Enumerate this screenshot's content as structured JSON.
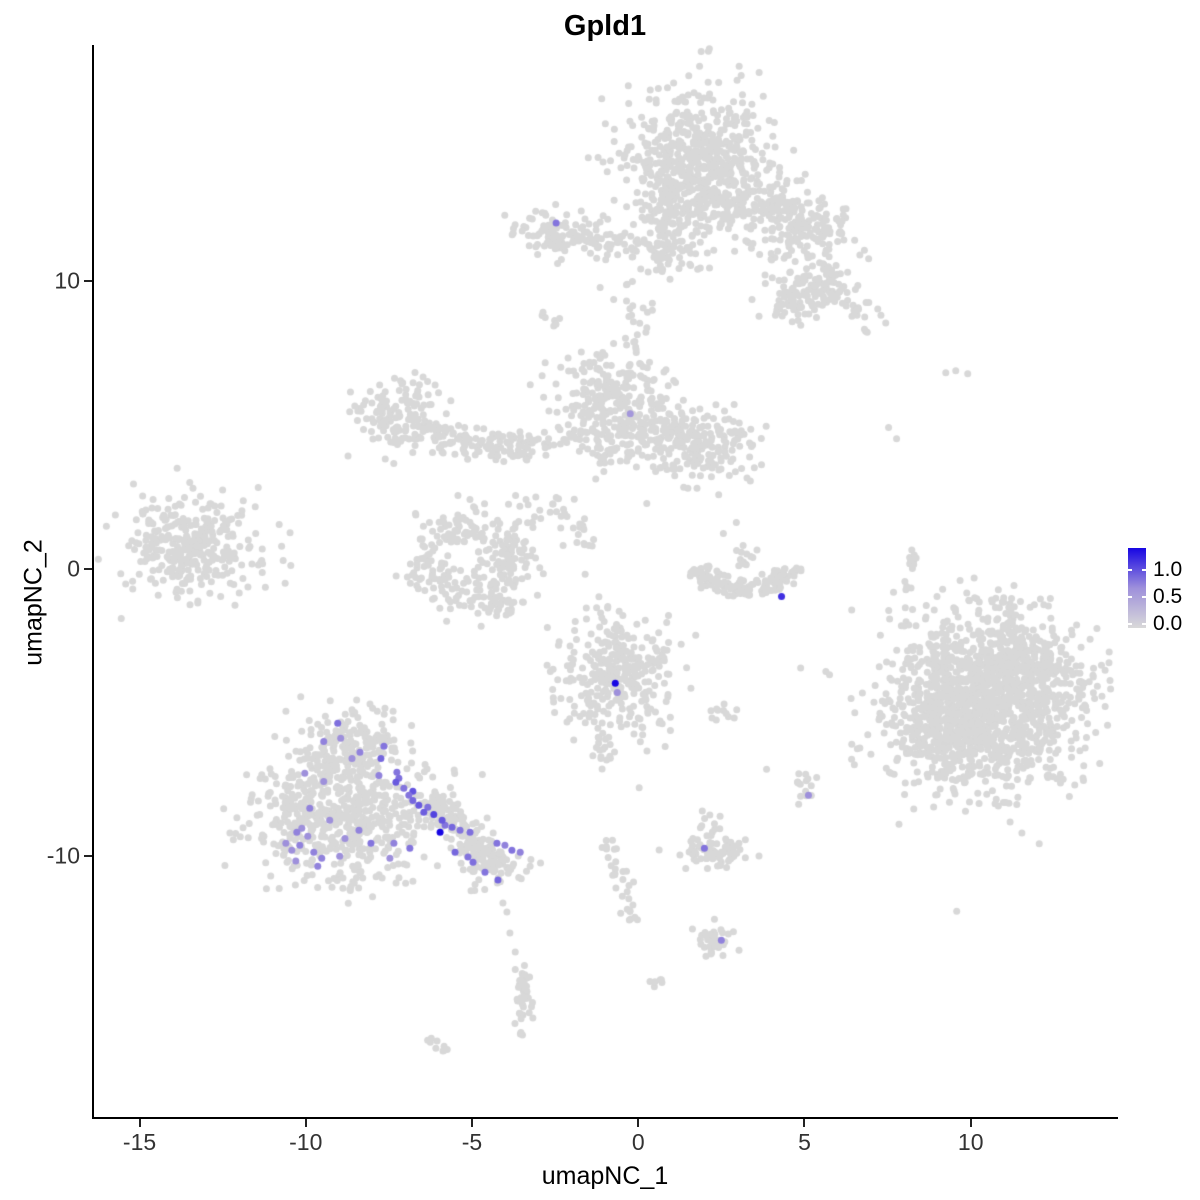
{
  "title": "Gpld1",
  "chart_data": {
    "type": "scatter",
    "title": "Gpld1",
    "xlabel": "umapNC_1",
    "ylabel": "umapNC_2",
    "xlim": [
      -16.4,
      14.4
    ],
    "ylim": [
      -19.1,
      18.2
    ],
    "x_ticks": [
      "-15",
      "-10",
      "-5",
      "0",
      "5",
      "10"
    ],
    "x_tick_values": [
      -15,
      -10,
      -5,
      0,
      5,
      10
    ],
    "y_ticks": [
      "10",
      "0",
      "-10"
    ],
    "y_tick_values": [
      10,
      0,
      -10
    ],
    "grid": false,
    "legend": {
      "position": "right",
      "labels": [
        "1.0",
        "0.5",
        "0.0"
      ],
      "values": [
        1.0,
        0.5,
        0.0
      ],
      "low_color": "#D9D9D9",
      "mid_color": "#9E90DB",
      "high_color": "#1706E3"
    },
    "point_color_default": "#D8D8D8",
    "point_radius_px": 3.5,
    "clusters": [
      {
        "t": "g",
        "p": [
          1.8,
          14.2,
          1.05,
          1.3,
          520
        ]
      },
      {
        "t": "g",
        "p": [
          2.6,
          12.9,
          1.3,
          0.7,
          140
        ]
      },
      {
        "t": "g",
        "p": [
          0.9,
          13.6,
          0.5,
          0.9,
          80
        ]
      },
      {
        "t": "g",
        "p": [
          1.0,
          11.4,
          0.5,
          0.75,
          70
        ]
      },
      {
        "t": "g",
        "p": [
          -2.45,
          11.65,
          0.6,
          0.42,
          85
        ]
      },
      {
        "t": "g",
        "p": [
          -0.9,
          11.3,
          0.85,
          0.28,
          65
        ]
      },
      {
        "t": "g",
        "p": [
          5.55,
          9.9,
          0.45,
          0.45,
          80
        ]
      },
      {
        "t": "g",
        "p": [
          4.6,
          9.25,
          0.4,
          0.36,
          55
        ]
      },
      {
        "t": "g",
        "p": [
          4.8,
          11.0,
          1.0,
          0.8,
          50
        ]
      },
      {
        "t": "g",
        "p": [
          -0.7,
          5.6,
          0.85,
          1.0,
          290
        ]
      },
      {
        "t": "g",
        "p": [
          1.95,
          4.35,
          0.9,
          0.7,
          185
        ]
      },
      {
        "t": "g",
        "p": [
          0.6,
          4.9,
          0.65,
          0.5,
          55
        ]
      },
      {
        "t": "g",
        "p": [
          -7.1,
          5.35,
          0.68,
          0.62,
          135
        ]
      },
      {
        "t": "g",
        "p": [
          -13.6,
          0.8,
          0.88,
          0.85,
          290
        ]
      },
      {
        "t": "g",
        "p": [
          -12.2,
          0.35,
          0.85,
          0.7,
          35
        ]
      },
      {
        "t": "g",
        "p": [
          -0.65,
          -3.75,
          0.92,
          1.1,
          330
        ]
      },
      {
        "t": "g",
        "p": [
          2.6,
          -5.1,
          0.4,
          0.22,
          11
        ]
      },
      {
        "t": "g",
        "p": [
          0.6,
          -14.3,
          0.17,
          0.15,
          6
        ]
      },
      {
        "t": "g",
        "p": [
          2.3,
          -9.85,
          0.52,
          0.24,
          72
        ]
      },
      {
        "t": "g",
        "p": [
          2.2,
          -8.95,
          0.3,
          0.25,
          13
        ]
      },
      {
        "t": "g",
        "p": [
          2.4,
          -12.95,
          0.27,
          0.24,
          30
        ]
      },
      {
        "t": "g",
        "p": [
          5.0,
          -7.6,
          0.2,
          0.3,
          15
        ]
      },
      {
        "t": "g",
        "p": [
          10.45,
          -4.6,
          1.5,
          1.55,
          1350
        ]
      },
      {
        "t": "g",
        "p": [
          9.3,
          -5.5,
          0.65,
          0.75,
          180
        ]
      },
      {
        "t": "g",
        "p": [
          11.5,
          -3.3,
          0.7,
          0.7,
          170
        ]
      },
      {
        "t": "g",
        "p": [
          -8.7,
          -6.1,
          0.8,
          0.62,
          190
        ]
      },
      {
        "t": "g",
        "p": [
          -8.9,
          -8.6,
          1.35,
          0.95,
          500
        ]
      },
      {
        "t": "g",
        "p": [
          -4.35,
          -10.4,
          0.48,
          0.33,
          65
        ]
      },
      {
        "t": "g",
        "p": [
          -8.2,
          -10.7,
          1.1,
          0.35,
          35
        ]
      },
      {
        "t": "g",
        "p": [
          -10.35,
          -8.7,
          0.45,
          0.85,
          55
        ]
      },
      {
        "t": "g",
        "p": [
          -3.4,
          -14.8,
          0.16,
          0.6,
          40
        ]
      },
      {
        "t": "g",
        "p": [
          -3.1,
          1.9,
          0.55,
          0.5,
          14
        ]
      },
      {
        "t": "s",
        "p": [
          3.0,
          12.95,
          6.1,
          11.6,
          0.5,
          165
        ]
      },
      {
        "t": "s",
        "p": [
          6.2,
          9.4,
          7.1,
          8.2,
          0.3,
          16
        ]
      },
      {
        "t": "s",
        "p": [
          -2.95,
          8.95,
          -2.45,
          8.5,
          0.1,
          7
        ]
      },
      {
        "t": "s",
        "p": [
          -0.35,
          10.0,
          -0.2,
          7.6,
          0.3,
          24
        ]
      },
      {
        "t": "s",
        "p": [
          -6.0,
          4.45,
          -3.1,
          4.2,
          0.26,
          105
        ]
      },
      {
        "t": "s",
        "p": [
          -6.6,
          5.0,
          -5.8,
          4.5,
          0.18,
          25
        ]
      },
      {
        "t": "s",
        "p": [
          -3.0,
          4.3,
          -1.8,
          4.8,
          0.2,
          18
        ]
      },
      {
        "t": "s",
        "p": [
          -4.4,
          -0.85,
          -3.75,
          -1.55,
          0.2,
          22
        ]
      },
      {
        "t": "s",
        "p": [
          -2.5,
          2.45,
          -1.4,
          0.75,
          0.2,
          26
        ]
      },
      {
        "t": "s",
        "p": [
          3.2,
          0.95,
          3.3,
          -0.1,
          0.13,
          13
        ]
      },
      {
        "t": "s",
        "p": [
          -1.25,
          -5.3,
          -1.0,
          -6.7,
          0.16,
          20
        ]
      },
      {
        "t": "s",
        "p": [
          -0.92,
          -9.4,
          -0.45,
          -10.9,
          0.13,
          17
        ]
      },
      {
        "t": "s",
        "p": [
          -0.45,
          -10.9,
          -0.2,
          -12.4,
          0.13,
          15
        ]
      },
      {
        "t": "s",
        "p": [
          2.05,
          -13.5,
          2.35,
          -13.05,
          0.1,
          7
        ]
      },
      {
        "t": "s",
        "p": [
          8.1,
          0.9,
          8.2,
          -0.95,
          0.11,
          13
        ]
      },
      {
        "t": "s",
        "p": [
          -6.35,
          -7.95,
          -4.4,
          -10.25,
          0.28,
          165
        ]
      },
      {
        "t": "s",
        "p": [
          -6.3,
          -16.35,
          -5.8,
          -16.8,
          0.1,
          9
        ]
      },
      {
        "t": "r",
        "p": [
          -5.1,
          0.3,
          1.4,
          1.25,
          0.4,
          265
        ]
      },
      {
        "t": "a",
        "p": [
          3.2,
          0.35,
          1.45,
          1.1,
          195,
          345,
          0.18,
          150
        ]
      }
    ],
    "singles": [
      [
        1.87,
        3.23
      ],
      [
        2.56,
        1.22
      ],
      [
        2.95,
        1.6
      ],
      [
        7.53,
        4.9
      ],
      [
        7.77,
        4.51
      ],
      [
        9.25,
        6.81
      ],
      [
        9.55,
        6.88
      ],
      [
        9.91,
        6.77
      ],
      [
        8.0,
        -2.0
      ],
      [
        -2.8,
        7.15
      ],
      [
        -2.26,
        0.8
      ],
      [
        1.63,
        -12.53
      ],
      [
        -4.07,
        -11.63
      ],
      [
        -3.95,
        -11.94
      ],
      [
        -3.86,
        -12.67
      ],
      [
        -3.7,
        -13.33
      ],
      [
        3.86,
        -6.98
      ],
      [
        -11.43,
        2.82
      ],
      [
        -11.88,
        2.36
      ],
      [
        -11.52,
        2.15
      ],
      [
        -10.8,
        1.53
      ]
    ],
    "highlighted_cells": [
      [
        -9.04,
        -5.38,
        0.62
      ],
      [
        -9.46,
        -6.01,
        0.55
      ],
      [
        -8.95,
        -5.9,
        0.5
      ],
      [
        -7.65,
        -6.18,
        0.6
      ],
      [
        -8.37,
        -6.39,
        0.55
      ],
      [
        -8.61,
        -6.6,
        0.5
      ],
      [
        -7.74,
        -6.6,
        0.65
      ],
      [
        -10.03,
        -7.12,
        0.5
      ],
      [
        -7.26,
        -7.08,
        0.6
      ],
      [
        -7.8,
        -7.19,
        0.55
      ],
      [
        -9.46,
        -7.4,
        0.5
      ],
      [
        -7.2,
        -7.29,
        0.62
      ],
      [
        -7.29,
        -7.43,
        0.7
      ],
      [
        -7.05,
        -7.64,
        0.6
      ],
      [
        -6.78,
        -7.74,
        0.72
      ],
      [
        -6.9,
        -7.88,
        0.6
      ],
      [
        -6.78,
        -8.06,
        0.65
      ],
      [
        -6.6,
        -8.23,
        0.7
      ],
      [
        -9.88,
        -8.33,
        0.55
      ],
      [
        -6.33,
        -8.3,
        0.62
      ],
      [
        -6.45,
        -8.47,
        0.68
      ],
      [
        -9.28,
        -8.75,
        0.5
      ],
      [
        -8.4,
        -9.1,
        0.55
      ],
      [
        -10.12,
        -9.03,
        0.5
      ],
      [
        -10.27,
        -9.17,
        0.55
      ],
      [
        -5.81,
        -8.92,
        0.6
      ],
      [
        -9.94,
        -9.31,
        0.5
      ],
      [
        -5.6,
        -8.99,
        0.65
      ],
      [
        -5.36,
        -9.1,
        0.6
      ],
      [
        -5.06,
        -9.17,
        0.62
      ],
      [
        -5.96,
        -9.17,
        1.0
      ],
      [
        -10.6,
        -9.55,
        0.5
      ],
      [
        -10.18,
        -9.62,
        0.55
      ],
      [
        -8.82,
        -9.38,
        0.5
      ],
      [
        -8.04,
        -9.55,
        0.6
      ],
      [
        -7.35,
        -9.55,
        0.55
      ],
      [
        -10.42,
        -9.79,
        0.5
      ],
      [
        -6.87,
        -9.72,
        0.6
      ],
      [
        -9.76,
        -9.86,
        0.55
      ],
      [
        -4.25,
        -9.55,
        0.6
      ],
      [
        -4.01,
        -9.62,
        0.55
      ],
      [
        -8.98,
        -10.0,
        0.5
      ],
      [
        -9.52,
        -10.07,
        0.55
      ],
      [
        -7.47,
        -10.07,
        0.5
      ],
      [
        -3.8,
        -9.79,
        0.6
      ],
      [
        -3.55,
        -9.86,
        0.55
      ],
      [
        -10.3,
        -10.17,
        0.5
      ],
      [
        -9.64,
        -10.35,
        0.55
      ],
      [
        -5.51,
        -9.86,
        0.65
      ],
      [
        -5.12,
        -10.03,
        0.6
      ],
      [
        -4.97,
        -10.21,
        0.62
      ],
      [
        -4.61,
        -10.56,
        0.6
      ],
      [
        -4.22,
        -10.83,
        0.65
      ],
      [
        -6.15,
        -8.55,
        0.78
      ],
      [
        -5.9,
        -8.75,
        0.7
      ],
      [
        -2.47,
        12.01,
        0.6
      ],
      [
        -0.24,
        5.38,
        0.45
      ],
      [
        4.31,
        -0.97,
        0.85
      ],
      [
        -0.69,
        -3.99,
        1.0
      ],
      [
        -0.63,
        -4.31,
        0.5
      ],
      [
        5.12,
        -7.88,
        0.5
      ],
      [
        1.99,
        -9.72,
        0.6
      ],
      [
        2.5,
        -12.92,
        0.55
      ]
    ]
  }
}
